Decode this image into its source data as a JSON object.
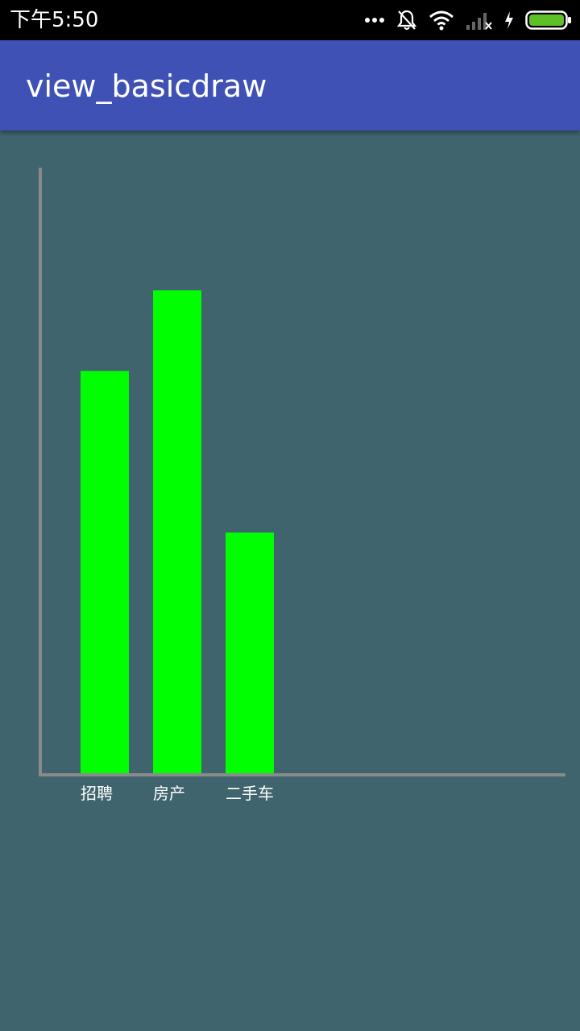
{
  "status_bar": {
    "time": "下午5:50",
    "icons": [
      "more-dots-icon",
      "notifications-off-icon",
      "wifi-icon",
      "signal-none-icon",
      "charging-bolt-icon",
      "battery-full-icon"
    ]
  },
  "app_bar": {
    "title": "view_basicdraw",
    "color": "#3f51b5"
  },
  "colors": {
    "background": "#40646d",
    "bar": "#00ff00",
    "axis": "#8a8a8a",
    "label": "#ffffff"
  },
  "chart_data": {
    "type": "bar",
    "categories": [
      "招聘",
      "房产",
      "二手车"
    ],
    "values": [
      500,
      600,
      300
    ],
    "ylim": [
      0,
      750
    ],
    "title": "",
    "xlabel": "",
    "ylabel": "",
    "grid": false
  }
}
